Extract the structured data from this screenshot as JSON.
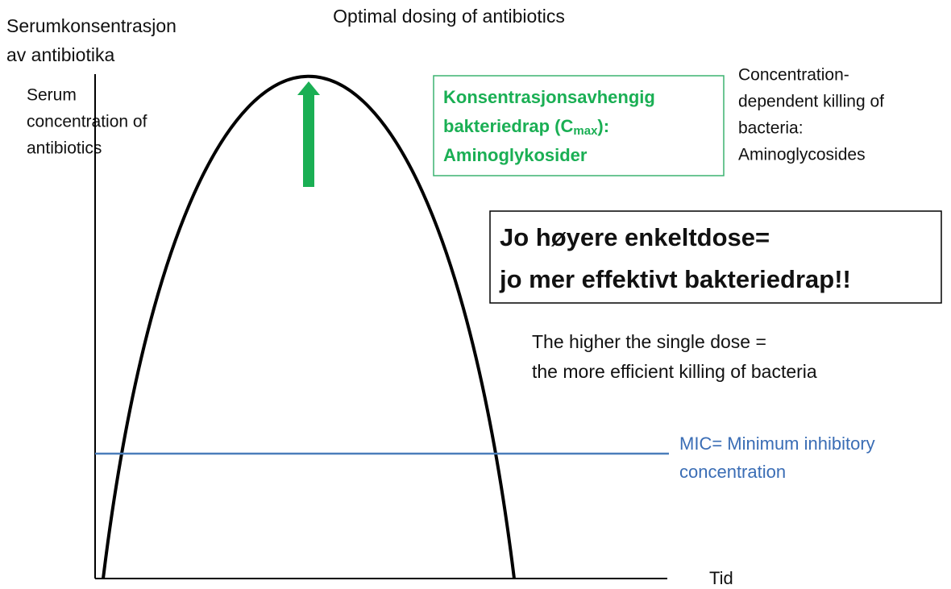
{
  "title": "Optimal dosing of antibiotics",
  "y_axis_label": {
    "norwegian": [
      "Serumkonsentrasjon",
      "av antibiotika"
    ],
    "english": [
      "Serum",
      "concentration of",
      "antibiotics"
    ]
  },
  "x_axis_label": "Tid",
  "green_box": {
    "lines": [
      "Konsentrasjonsavhengig",
      {
        "before": "bakteriedrap (C",
        "sub": "max",
        "after": "):"
      },
      "Aminoglykosider"
    ]
  },
  "green_box_translation": [
    "Concentration-",
    "dependent killing of",
    "bacteria:",
    "Aminoglycosides"
  ],
  "main_box": [
    "Jo høyere enkeltdose=",
    "jo mer effektivt bakteriedrap!!"
  ],
  "main_translation": [
    "The higher the single dose =",
    "the more efficient killing of bacteria"
  ],
  "mic_label": [
    "MIC= Minimum inhibitory",
    "concentration"
  ]
}
